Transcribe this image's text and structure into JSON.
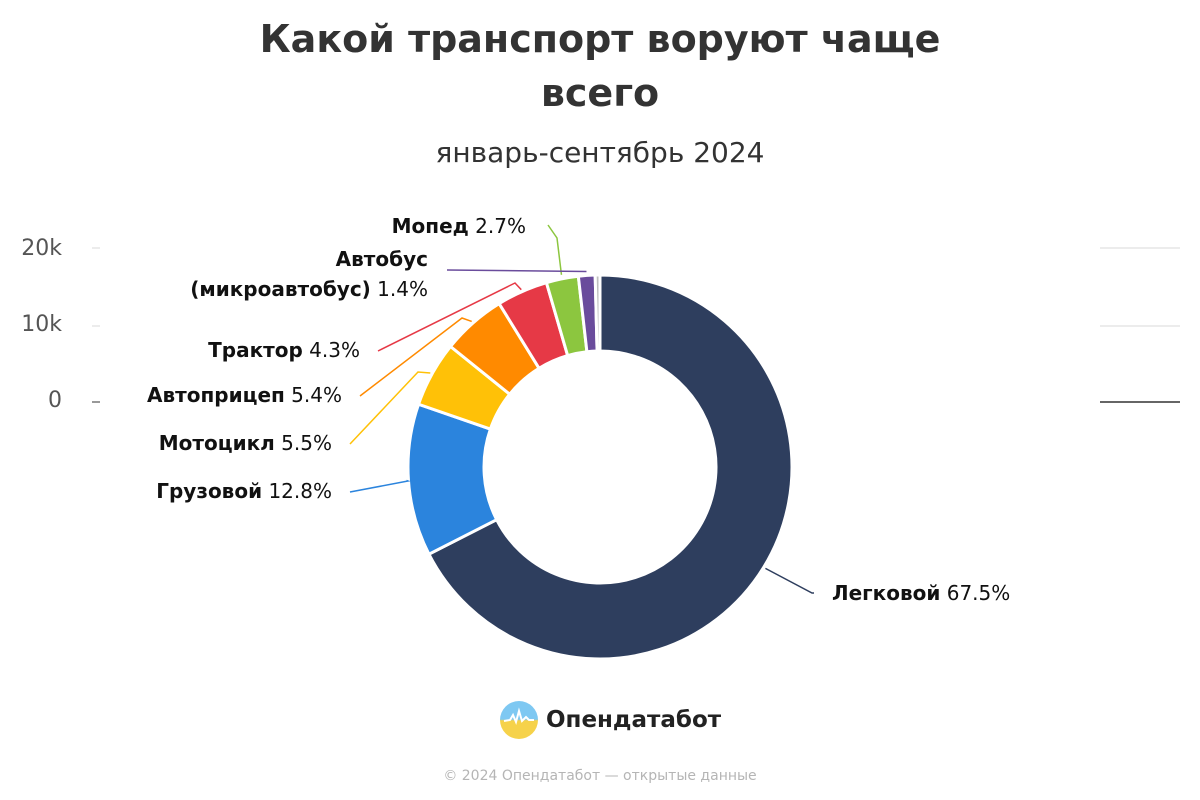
{
  "chart_data": {
    "type": "pie",
    "title_lines": [
      "Какой транспорт воруют чаще",
      "всего"
    ],
    "subtitle": "январь-сентябрь 2024",
    "yticks": [
      "20k",
      "10k",
      "0"
    ],
    "slices": [
      {
        "name": "Легковой",
        "label": "67.5%",
        "value": 67.5,
        "color": "#2e3e5e"
      },
      {
        "name": "Грузовой",
        "label": "12.8%",
        "value": 12.8,
        "color": "#2b84dd"
      },
      {
        "name": "Мотоцикл",
        "label": "5.5%",
        "value": 5.5,
        "color": "#ffc107"
      },
      {
        "name": "Автоприцеп",
        "label": "5.4%",
        "value": 5.4,
        "color": "#ff8a00"
      },
      {
        "name": "Трактор",
        "label": "4.3%",
        "value": 4.3,
        "color": "#e63946"
      },
      {
        "name": "Мопед",
        "label": "2.7%",
        "value": 2.7,
        "color": "#8cc63f"
      },
      {
        "name": "Автобус (микроавтобус)",
        "label": "1.4%",
        "value": 1.4,
        "color": "#6a4c9c"
      },
      {
        "name": "",
        "label": "",
        "value": 0.4,
        "color": "#bfbfbf"
      }
    ]
  },
  "branding": {
    "name": "Опендатабот",
    "footer": "© 2024 Опендатабот — открытые данные"
  }
}
